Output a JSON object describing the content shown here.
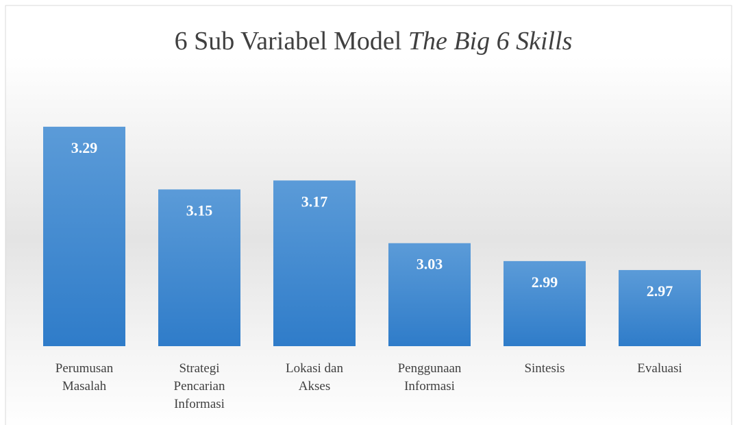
{
  "chart_data": {
    "type": "bar",
    "title": "6 Sub Variabel Model",
    "title_emphasis": "The Big 6 Skills",
    "categories": [
      "Perumusan Masalah",
      "Strategi Pencarian Informasi",
      "Lokasi dan Akses",
      "Penggunaan Informasi",
      "Sintesis",
      "Evaluasi"
    ],
    "values": [
      3.29,
      3.15,
      3.17,
      3.03,
      2.99,
      2.97
    ],
    "color": "#3f8bd4",
    "ylim": [
      2.8,
      3.4
    ],
    "grid": false
  }
}
